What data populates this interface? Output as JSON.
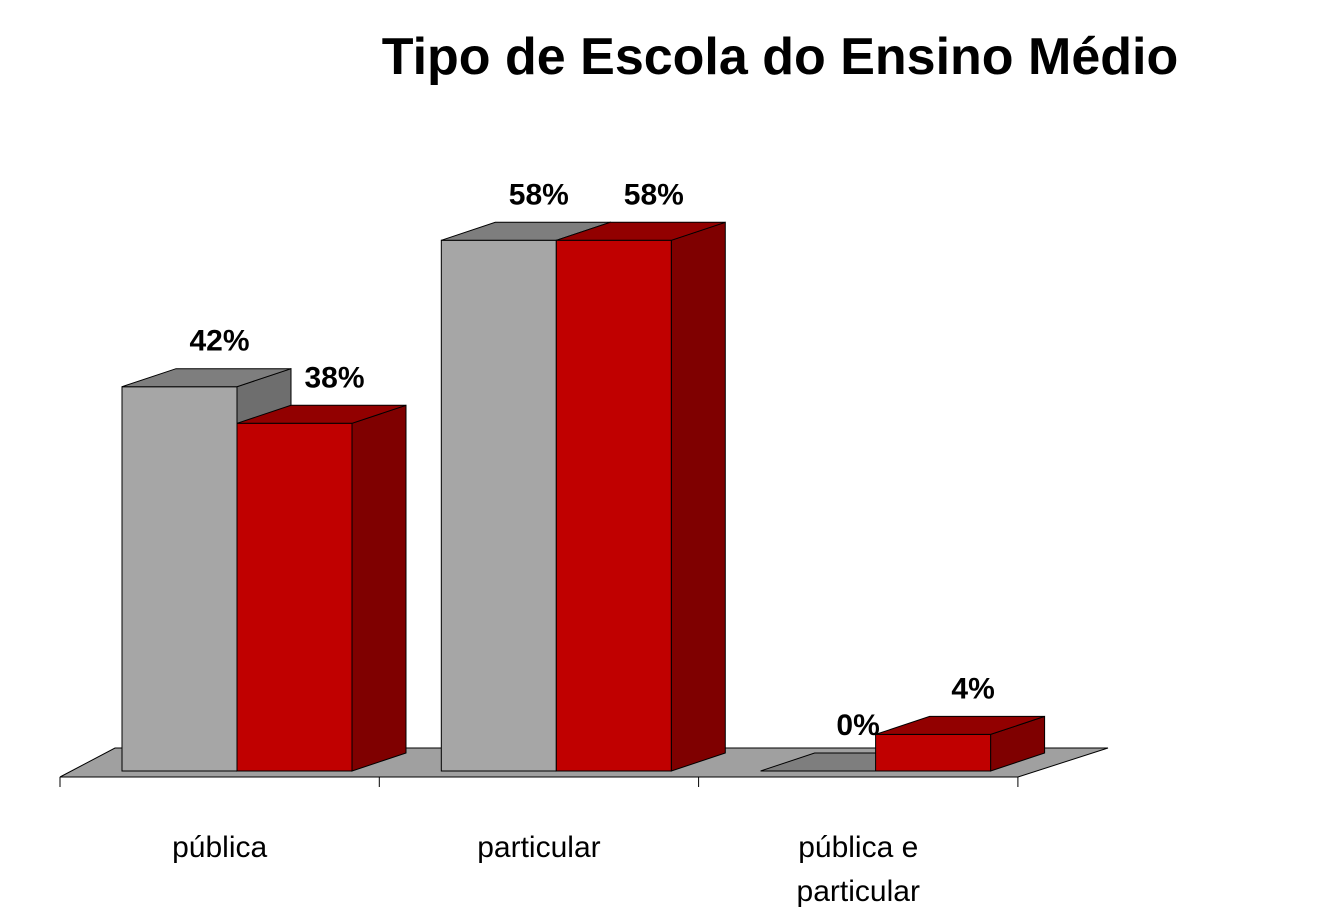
{
  "chart_data": {
    "type": "bar3d",
    "title": "Tipo de Escola do Ensino Médio",
    "categories": [
      "pública",
      "particular",
      "pública e particular"
    ],
    "series": [
      {
        "color": "#a6a6a6",
        "values": [
          42,
          58,
          0
        ],
        "value_labels": [
          "42%",
          "58%",
          "0%"
        ]
      },
      {
        "color": "#c00000",
        "values": [
          38,
          58,
          4
        ],
        "value_labels": [
          "38%",
          "58%",
          "4%"
        ]
      }
    ]
  }
}
